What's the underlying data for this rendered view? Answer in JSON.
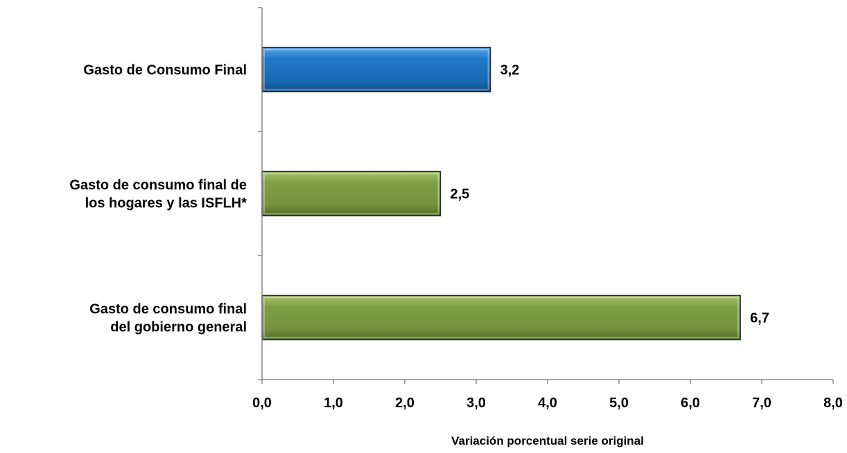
{
  "chart_data": {
    "type": "bar",
    "orientation": "horizontal",
    "categories": [
      "Gasto de Consumo Final",
      "Gasto de consumo final de los hogares y las ISFLH*",
      "Gasto de consumo final del gobierno general"
    ],
    "category_lines": [
      [
        "Gasto de Consumo Final"
      ],
      [
        "Gasto de consumo final de",
        "los hogares y las ISFLH*"
      ],
      [
        "Gasto de consumo final",
        "del gobierno general"
      ]
    ],
    "values": [
      3.2,
      2.5,
      6.7
    ],
    "value_labels": [
      "3,2",
      "2,5",
      "6,7"
    ],
    "bar_colors": [
      "#1f78c8",
      "#7f9f45",
      "#7f9f45"
    ],
    "xlim": [
      0,
      8
    ],
    "x_ticks": [
      0,
      1,
      2,
      3,
      4,
      5,
      6,
      7,
      8
    ],
    "x_tick_labels": [
      "0,0",
      "1,0",
      "2,0",
      "3,0",
      "4,0",
      "5,0",
      "6,0",
      "7,0",
      "8,0"
    ],
    "xlabel": "Variación porcentual serie original",
    "ylabel": "",
    "title": "",
    "grid": false,
    "legend": "none"
  }
}
